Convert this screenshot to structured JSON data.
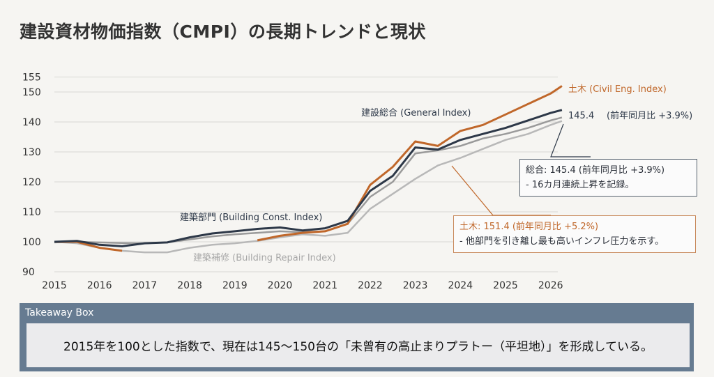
{
  "title": "建設資材物価指数（CMPI）の長期トレンドと現状",
  "chart_data": {
    "type": "line",
    "title": "建設資材物価指数（CMPI）の長期トレンドと現状",
    "xlabel": "",
    "ylabel": "",
    "xlim": [
      2015,
      2026
    ],
    "ylim": [
      90,
      155
    ],
    "x_ticks": [
      "2015",
      "2016",
      "2017",
      "2018",
      "2019",
      "2020",
      "2021",
      "2022",
      "2023",
      "2024",
      "2025",
      "2026"
    ],
    "y_ticks": [
      "90",
      "100",
      "110",
      "120",
      "130",
      "140",
      "150",
      "155"
    ],
    "grid": true,
    "x": [
      2015,
      2015.5,
      2016,
      2016.5,
      2017,
      2017.5,
      2018,
      2018.5,
      2019,
      2019.5,
      2020,
      2020.5,
      2021,
      2021.5,
      2022,
      2022.5,
      2023,
      2023.5,
      2024,
      2024.5,
      2025,
      2025.5,
      2026,
      2026.25
    ],
    "series": [
      {
        "name": "建築補修 (Building Repair Index)",
        "color": "#b8b8b8",
        "values": [
          100,
          99.5,
          98,
          97,
          96.5,
          96.5,
          98,
          99,
          99.5,
          100.3,
          101.5,
          102.5,
          102,
          103,
          111,
          116,
          121,
          125.5,
          128,
          131,
          134,
          136,
          139,
          140.3
        ]
      },
      {
        "name": "建築部門 (Building Const. Index)",
        "color": "#9a9a9a",
        "values": [
          99.8,
          100,
          99.8,
          99.6,
          99.5,
          99.8,
          100.8,
          101.8,
          102.5,
          103,
          103.5,
          103.2,
          103.5,
          106,
          115,
          120,
          129.5,
          130.5,
          132,
          134.5,
          136,
          138,
          140.5,
          141.5
        ]
      },
      {
        "name": "土木 (Civil Eng. Index)",
        "color": "#c0672a",
        "values": [
          100,
          100,
          98,
          97,
          null,
          null,
          null,
          null,
          null,
          100.5,
          102,
          103,
          103.5,
          106,
          119,
          125,
          133.5,
          132,
          137,
          139,
          142.5,
          146,
          149.5,
          152
        ]
      },
      {
        "name": "建設総合 (General Index)",
        "color": "#2d3848",
        "values": [
          100,
          100.3,
          99,
          98.5,
          99.5,
          99.8,
          101.5,
          102.8,
          103.5,
          104.3,
          104.8,
          103.8,
          104.5,
          107,
          117,
          122,
          131.5,
          130.8,
          134,
          136,
          138,
          140.5,
          143,
          144
        ]
      }
    ],
    "end_label_general": "145.4",
    "end_label_general_note": "(前年同月比 +3.9%)",
    "annotations": [
      {
        "title": "総合: 145.4 (前年同月比 +3.9%)",
        "text": "- 16カ月連続上昇を記録。",
        "color": "#2d3848"
      },
      {
        "title": "土木: 151.4 (前年同月比 +5.2%)",
        "text": "- 他部門を引き離し最も高いインフレ圧力を示す。",
        "color": "#c0672a"
      }
    ]
  },
  "takeaway": {
    "header": "Takeaway Box",
    "text": "2015年を100とした指数で、現在は145～150台の「未曾有の高止まりプラトー（平坦地）」を形成している。"
  }
}
